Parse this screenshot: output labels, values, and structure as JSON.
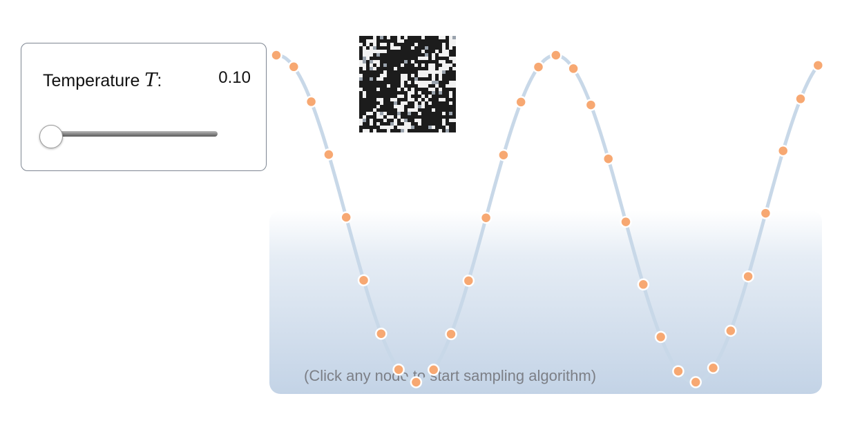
{
  "control": {
    "label": "Temperature",
    "symbol": "T",
    "colon": ":",
    "value": "0.10",
    "slider_fraction": 0.0
  },
  "hint": "(Click any node to start sampling algorithm)",
  "colors": {
    "node": "#f7a872",
    "curve": "#c8d8e8",
    "panel_border": "#7d8591",
    "hint_text": "#7c7f86"
  },
  "state_image": {
    "icon": "ising-lattice-state"
  }
}
